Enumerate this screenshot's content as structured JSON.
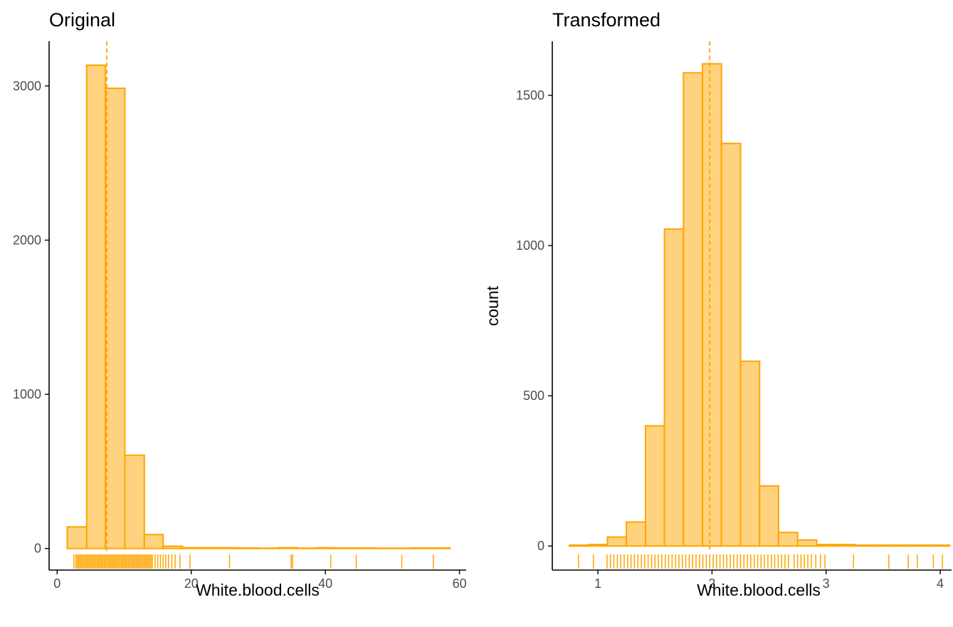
{
  "colors": {
    "fill": "#ffd27f",
    "stroke": "#ffa500"
  },
  "chart_data": [
    {
      "type": "bar",
      "title": "Original",
      "xlabel": "White.blood.cells",
      "ylabel": "",
      "xlim": [
        -1.2,
        61
      ],
      "ylim": [
        -140,
        3290
      ],
      "xticks": [
        0,
        20,
        40,
        60
      ],
      "yticks": [
        0,
        1000,
        2000,
        3000
      ],
      "bin_edges": [
        1.5,
        4.4,
        7.2,
        10.1,
        13.0,
        15.8,
        18.7,
        21.5,
        24.4,
        27.2,
        30.1,
        32.9,
        35.8,
        38.7,
        41.5,
        44.4,
        47.2,
        50.1,
        52.9,
        55.8,
        58.6
      ],
      "counts": [
        140,
        3135,
        2985,
        605,
        90,
        15,
        5,
        5,
        5,
        3,
        2,
        5,
        2,
        5,
        3,
        3,
        2,
        2,
        3,
        3
      ],
      "mean": 7.4,
      "rug": [
        2.5,
        2.8,
        3.0,
        3.2,
        3.4,
        3.6,
        3.8,
        4.0,
        4.2,
        4.4,
        4.6,
        4.8,
        5.0,
        5.2,
        5.4,
        5.6,
        5.8,
        6.0,
        6.2,
        6.4,
        6.6,
        6.8,
        7.0,
        7.2,
        7.4,
        7.6,
        7.8,
        8.0,
        8.2,
        8.4,
        8.6,
        8.8,
        9.0,
        9.2,
        9.4,
        9.6,
        9.8,
        10.0,
        10.2,
        10.4,
        10.6,
        10.8,
        11.0,
        11.2,
        11.4,
        11.6,
        11.8,
        12.0,
        12.2,
        12.4,
        12.6,
        12.8,
        13.0,
        13.2,
        13.4,
        13.6,
        13.8,
        14.0,
        14.2,
        14.6,
        15.0,
        15.4,
        15.8,
        16.2,
        16.6,
        17.1,
        17.6,
        18.3,
        19.8,
        25.7,
        34.9,
        35.1,
        40.8,
        44.6,
        51.4,
        56.1
      ]
    },
    {
      "type": "bar",
      "title": "Transformed",
      "xlabel": "White.blood.cells",
      "ylabel": "count",
      "xlim": [
        0.6,
        4.1
      ],
      "ylim": [
        -80,
        1680
      ],
      "xticks": [
        1,
        2,
        3,
        4
      ],
      "yticks": [
        0,
        500,
        1000,
        1500
      ],
      "bin_edges": [
        0.75,
        0.917,
        1.083,
        1.25,
        1.417,
        1.583,
        1.75,
        1.917,
        2.083,
        2.25,
        2.417,
        2.583,
        2.75,
        2.917,
        3.083,
        3.25,
        3.417,
        3.583,
        3.75,
        3.917,
        4.083
      ],
      "counts": [
        3,
        5,
        30,
        80,
        400,
        1055,
        1575,
        1605,
        1340,
        615,
        200,
        45,
        20,
        5,
        5,
        3,
        3,
        3,
        3,
        3
      ],
      "mean": 1.98,
      "rug": [
        0.83,
        0.96,
        1.08,
        1.11,
        1.14,
        1.17,
        1.2,
        1.23,
        1.26,
        1.29,
        1.32,
        1.35,
        1.38,
        1.41,
        1.44,
        1.47,
        1.5,
        1.53,
        1.56,
        1.59,
        1.62,
        1.65,
        1.68,
        1.71,
        1.74,
        1.77,
        1.8,
        1.83,
        1.86,
        1.89,
        1.92,
        1.95,
        1.98,
        2.01,
        2.04,
        2.07,
        2.1,
        2.13,
        2.16,
        2.19,
        2.22,
        2.25,
        2.28,
        2.31,
        2.34,
        2.37,
        2.4,
        2.43,
        2.46,
        2.49,
        2.52,
        2.55,
        2.58,
        2.61,
        2.64,
        2.67,
        2.72,
        2.75,
        2.78,
        2.81,
        2.84,
        2.87,
        2.91,
        2.95,
        2.99,
        3.24,
        3.55,
        3.72,
        3.8,
        3.94,
        4.02
      ]
    }
  ]
}
